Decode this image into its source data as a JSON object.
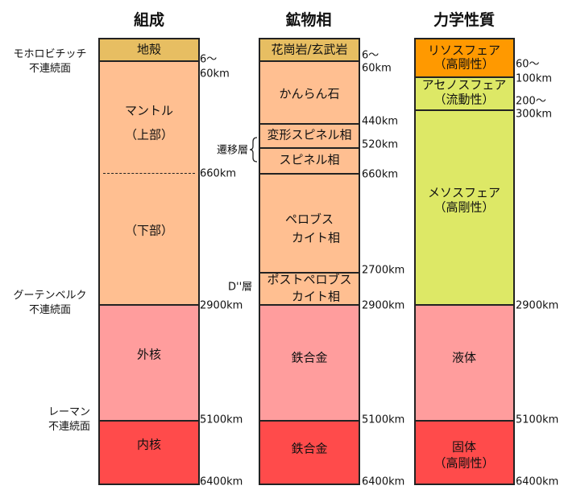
{
  "titles": [
    "組成",
    "鉱物相",
    "力学性質"
  ],
  "colors": {
    "crust": "#e7be62",
    "mantle": "#ffbf91",
    "outer_core": "#ff9d9d",
    "inner_core": "#ff4b4b",
    "lithosphere": "#ff9900",
    "soft": "#dde866"
  },
  "composition": {
    "crust": "地殻",
    "mantle": "マントル",
    "upper": "（上部）",
    "lower": "（下部）",
    "outer_core": "外核",
    "inner_core": "内核"
  },
  "mineral": {
    "l1": "花崗岩/玄武岩",
    "l2": "かんらん石",
    "l3": "変形スピネル相",
    "l4": "スピネル相",
    "l5a": "ペロブス",
    "l5b": "カイト相",
    "l6a": "ポストペロブス",
    "l6b": "カイト相",
    "l7": "鉄合金",
    "l8": "鉄合金",
    "transition": "遷移層",
    "dpp": "D''層"
  },
  "mechanical": {
    "litho": "リソスフェア",
    "litho_sub": "（高剛性）",
    "astheno": "アセノスフェア",
    "astheno_sub": "（流動性）",
    "meso": "メソスフェア",
    "meso_sub": "（高剛性）",
    "liquid": "液体",
    "solid": "固体",
    "solid_sub": "（高剛性）"
  },
  "discontinuities": {
    "moho": [
      "モホロビチッチ",
      "不連続面"
    ],
    "gutenberg": [
      "グーテンベルク",
      "不連続面"
    ],
    "lehmann": [
      "レーマン",
      "不連続面"
    ]
  },
  "depths": {
    "d6": "6～",
    "d60": "60km",
    "d440": "440km",
    "d520": "520km",
    "d660": "660km",
    "d2700": "2700km",
    "d2900": "2900km",
    "d5100": "5100km",
    "d6400": "6400km",
    "d60b": "60～",
    "d100": "100km",
    "d200": "200～",
    "d300": "300km"
  }
}
